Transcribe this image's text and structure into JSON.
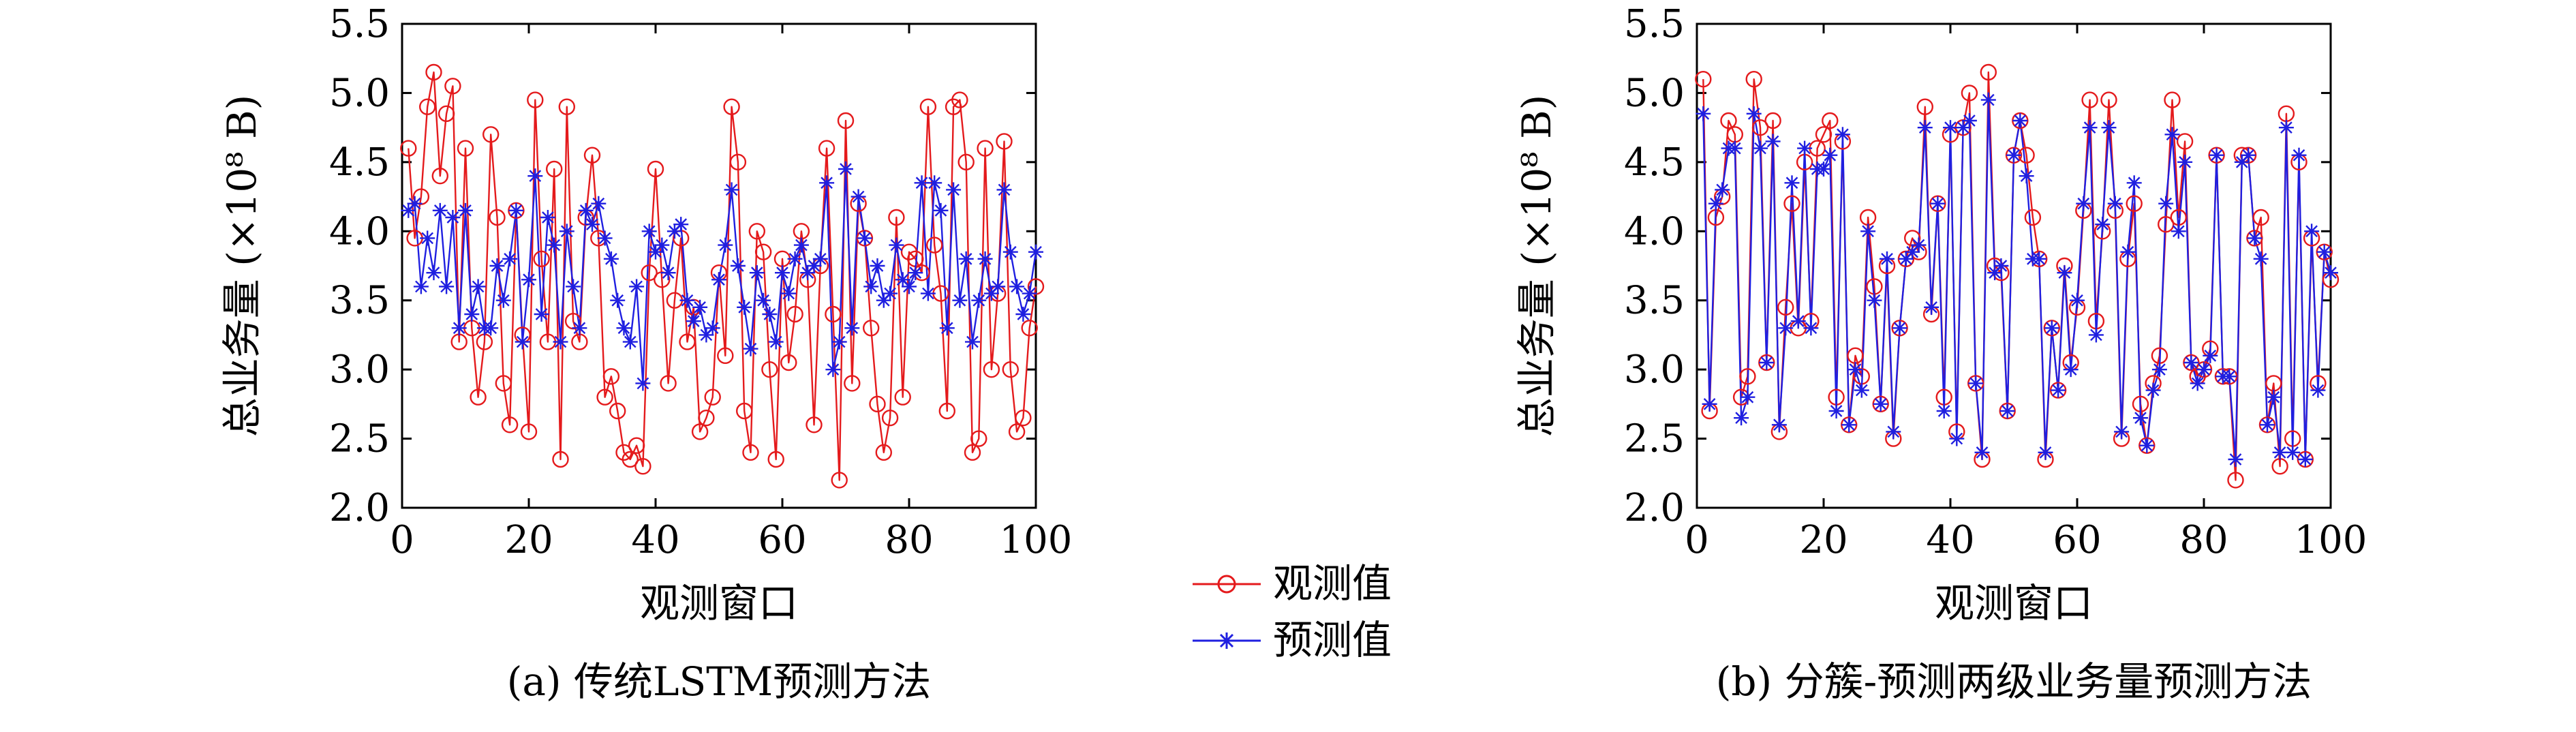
{
  "legend": {
    "observed": "观测值",
    "predicted": "预测值"
  },
  "colors": {
    "observed": "#e41a1c",
    "predicted": "#1f1fe0",
    "axis": "#000000"
  },
  "chart_data": [
    {
      "type": "line",
      "caption": "(a) 传统LSTM预测方法",
      "xlabel": "观测窗口",
      "ylabel": "总业务量 (×10⁸ B)",
      "xlim": [
        0,
        100
      ],
      "ylim": [
        2.0,
        5.5
      ],
      "xticks": [
        0,
        20,
        40,
        60,
        80,
        100
      ],
      "yticks": [
        2.0,
        2.5,
        3.0,
        3.5,
        4.0,
        4.5,
        5.0,
        5.5
      ],
      "ytick_labels": [
        "2.0",
        "2.5",
        "3.0",
        "3.5",
        "4.0",
        "4.5",
        "5.0",
        "5.5"
      ],
      "grid": false,
      "markers": {
        "observed": "circle",
        "predicted": "asterisk"
      },
      "x": [
        1,
        2,
        3,
        4,
        5,
        6,
        7,
        8,
        9,
        10,
        11,
        12,
        13,
        14,
        15,
        16,
        17,
        18,
        19,
        20,
        21,
        22,
        23,
        24,
        25,
        26,
        27,
        28,
        29,
        30,
        31,
        32,
        33,
        34,
        35,
        36,
        37,
        38,
        39,
        40,
        41,
        42,
        43,
        44,
        45,
        46,
        47,
        48,
        49,
        50,
        51,
        52,
        53,
        54,
        55,
        56,
        57,
        58,
        59,
        60,
        61,
        62,
        63,
        64,
        65,
        66,
        67,
        68,
        69,
        70,
        71,
        72,
        73,
        74,
        75,
        76,
        77,
        78,
        79,
        80,
        81,
        82,
        83,
        84,
        85,
        86,
        87,
        88,
        89,
        90,
        91,
        92,
        93,
        94,
        95,
        96,
        97,
        98,
        99,
        100
      ],
      "series": [
        {
          "name": "观测值",
          "values": [
            4.6,
            3.95,
            4.25,
            4.9,
            5.15,
            4.4,
            4.85,
            5.05,
            3.2,
            4.6,
            3.3,
            2.8,
            3.2,
            4.7,
            4.1,
            2.9,
            2.6,
            4.15,
            3.25,
            2.55,
            4.95,
            3.8,
            3.2,
            4.45,
            2.35,
            4.9,
            3.35,
            3.2,
            4.1,
            4.55,
            3.95,
            2.8,
            2.95,
            2.7,
            2.4,
            2.35,
            2.45,
            2.3,
            3.7,
            4.45,
            3.65,
            2.9,
            3.5,
            3.95,
            3.2,
            3.45,
            2.55,
            2.65,
            2.8,
            3.7,
            3.1,
            4.9,
            4.5,
            2.7,
            2.4,
            4.0,
            3.85,
            3.0,
            2.35,
            3.8,
            3.05,
            3.4,
            4.0,
            3.65,
            2.6,
            3.75,
            4.6,
            3.4,
            2.2,
            4.8,
            2.9,
            4.2,
            3.95,
            3.3,
            2.75,
            2.4,
            2.65,
            4.1,
            2.8,
            3.85,
            3.8,
            3.7,
            4.9,
            3.9,
            3.55,
            2.7,
            4.9,
            4.95,
            4.5,
            2.4,
            2.5,
            4.6,
            3.0,
            3.55,
            4.65,
            3.0,
            2.55,
            2.65,
            3.3,
            3.6
          ]
        },
        {
          "name": "预测值",
          "values": [
            4.15,
            4.2,
            3.6,
            3.95,
            3.7,
            4.15,
            3.6,
            4.1,
            3.3,
            4.15,
            3.4,
            3.6,
            3.3,
            3.3,
            3.75,
            3.5,
            3.8,
            4.15,
            3.2,
            3.65,
            4.4,
            3.4,
            4.1,
            3.9,
            3.2,
            4.0,
            3.6,
            3.3,
            4.15,
            4.05,
            4.2,
            3.95,
            3.8,
            3.5,
            3.3,
            3.2,
            3.6,
            2.9,
            4.0,
            3.85,
            3.9,
            3.7,
            4.0,
            4.05,
            3.5,
            3.35,
            3.45,
            3.25,
            3.3,
            3.65,
            3.9,
            4.3,
            3.75,
            3.45,
            3.15,
            3.7,
            3.5,
            3.4,
            3.2,
            3.7,
            3.55,
            3.8,
            3.9,
            3.7,
            3.75,
            3.8,
            4.35,
            3.0,
            3.2,
            4.45,
            3.3,
            4.25,
            3.95,
            3.6,
            3.75,
            3.5,
            3.55,
            3.9,
            3.65,
            3.6,
            3.7,
            4.35,
            3.55,
            4.35,
            4.15,
            3.3,
            4.3,
            3.5,
            3.8,
            3.2,
            3.5,
            3.8,
            3.55,
            3.6,
            4.3,
            3.85,
            3.6,
            3.4,
            3.55,
            3.85
          ]
        }
      ]
    },
    {
      "type": "line",
      "caption": "(b) 分簇-预测两级业务量预测方法",
      "xlabel": "观测窗口",
      "ylabel": "总业务量 (×10⁸ B)",
      "xlim": [
        0,
        100
      ],
      "ylim": [
        2.0,
        5.5
      ],
      "xticks": [
        0,
        20,
        40,
        60,
        80,
        100
      ],
      "yticks": [
        2.0,
        2.5,
        3.0,
        3.5,
        4.0,
        4.5,
        5.0,
        5.5
      ],
      "ytick_labels": [
        "2.0",
        "2.5",
        "3.0",
        "3.5",
        "4.0",
        "4.5",
        "5.0",
        "5.5"
      ],
      "grid": false,
      "markers": {
        "observed": "circle",
        "predicted": "asterisk"
      },
      "x": [
        1,
        2,
        3,
        4,
        5,
        6,
        7,
        8,
        9,
        10,
        11,
        12,
        13,
        14,
        15,
        16,
        17,
        18,
        19,
        20,
        21,
        22,
        23,
        24,
        25,
        26,
        27,
        28,
        29,
        30,
        31,
        32,
        33,
        34,
        35,
        36,
        37,
        38,
        39,
        40,
        41,
        42,
        43,
        44,
        45,
        46,
        47,
        48,
        49,
        50,
        51,
        52,
        53,
        54,
        55,
        56,
        57,
        58,
        59,
        60,
        61,
        62,
        63,
        64,
        65,
        66,
        67,
        68,
        69,
        70,
        71,
        72,
        73,
        74,
        75,
        76,
        77,
        78,
        79,
        80,
        81,
        82,
        83,
        84,
        85,
        86,
        87,
        88,
        89,
        90,
        91,
        92,
        93,
        94,
        95,
        96,
        97,
        98,
        99,
        100
      ],
      "series": [
        {
          "name": "观测值",
          "values": [
            5.1,
            2.7,
            4.1,
            4.25,
            4.8,
            4.7,
            2.8,
            2.95,
            5.1,
            4.75,
            3.05,
            4.8,
            2.55,
            3.45,
            4.2,
            3.3,
            4.5,
            3.35,
            4.6,
            4.7,
            4.8,
            2.8,
            4.65,
            2.6,
            3.1,
            2.95,
            4.1,
            3.6,
            2.75,
            3.75,
            2.5,
            3.3,
            3.8,
            3.95,
            3.85,
            4.9,
            3.4,
            4.2,
            2.8,
            4.7,
            2.55,
            4.75,
            5.0,
            2.9,
            2.35,
            5.15,
            3.75,
            3.7,
            2.7,
            4.55,
            4.8,
            4.55,
            4.1,
            3.8,
            2.35,
            3.3,
            2.85,
            3.75,
            3.05,
            3.45,
            4.15,
            4.95,
            3.35,
            4.0,
            4.95,
            4.15,
            2.5,
            3.8,
            4.2,
            2.75,
            2.45,
            2.9,
            3.1,
            4.05,
            4.95,
            4.1,
            4.65,
            3.05,
            2.95,
            3.0,
            3.15,
            4.55,
            2.95,
            2.95,
            2.2,
            4.55,
            4.55,
            3.95,
            4.1,
            2.6,
            2.9,
            2.3,
            4.85,
            2.5,
            4.5,
            2.35,
            3.95,
            2.9,
            3.85,
            3.65
          ]
        },
        {
          "name": "预测值",
          "values": [
            4.85,
            2.75,
            4.2,
            4.3,
            4.6,
            4.6,
            2.65,
            2.8,
            4.85,
            4.6,
            3.05,
            4.65,
            2.6,
            3.3,
            4.35,
            3.35,
            4.6,
            3.3,
            4.45,
            4.45,
            4.55,
            2.7,
            4.7,
            2.6,
            3.0,
            2.85,
            4.0,
            3.5,
            2.75,
            3.8,
            2.55,
            3.3,
            3.8,
            3.85,
            3.9,
            4.75,
            3.45,
            4.2,
            2.7,
            4.75,
            2.5,
            4.75,
            4.8,
            2.9,
            2.4,
            4.95,
            3.7,
            3.75,
            2.7,
            4.55,
            4.8,
            4.4,
            3.8,
            3.8,
            2.4,
            3.3,
            2.85,
            3.7,
            3.0,
            3.5,
            4.2,
            4.75,
            3.25,
            4.05,
            4.75,
            4.2,
            2.55,
            3.85,
            4.35,
            2.65,
            2.45,
            2.85,
            3.0,
            4.2,
            4.7,
            4.0,
            4.5,
            3.05,
            2.9,
            3.0,
            3.1,
            4.55,
            2.95,
            2.95,
            2.35,
            4.5,
            4.55,
            3.95,
            3.8,
            2.6,
            2.8,
            2.4,
            4.75,
            2.4,
            4.55,
            2.35,
            4.0,
            2.85,
            3.85,
            3.7
          ]
        }
      ]
    }
  ]
}
